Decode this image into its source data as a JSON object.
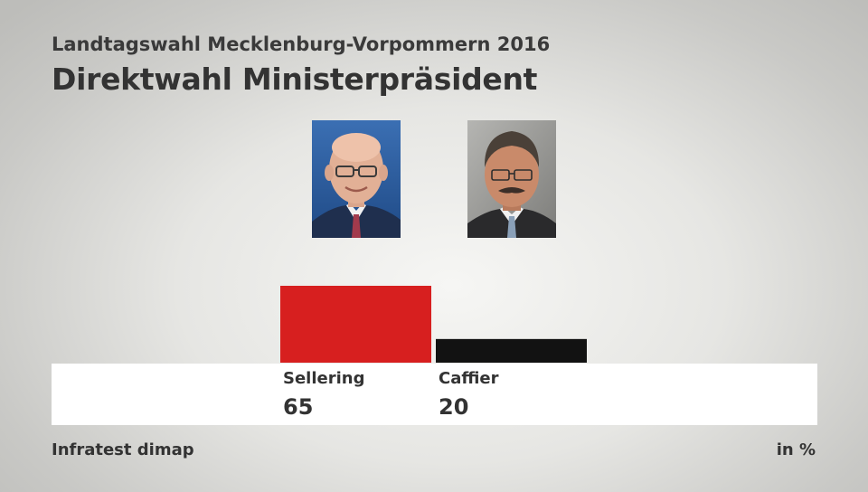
{
  "header": {
    "subtitle": "Landtagswahl Mecklenburg-Vorpommern 2016",
    "title": "Direktwahl Ministerpräsident"
  },
  "chart_data": {
    "type": "bar",
    "categories": [
      "Sellering",
      "Caffier"
    ],
    "values": [
      65,
      20
    ],
    "colors": [
      "#d71f1f",
      "#121212"
    ],
    "ylim": [
      0,
      65
    ],
    "grid": false,
    "legend": "none"
  },
  "portraits": [
    {
      "icon": "portrait-bald-glasses",
      "colors": {
        "bg": "#2f5d9e",
        "suit": "#1f2f4e",
        "tie": "#a23a4c"
      }
    },
    {
      "icon": "portrait-mustache",
      "colors": {
        "bg": "#9a9a96",
        "suit": "#2a2a2c",
        "tie": "#8aa0b8"
      }
    }
  ],
  "footer": {
    "source": "Infratest dimap",
    "unit": "in %"
  }
}
